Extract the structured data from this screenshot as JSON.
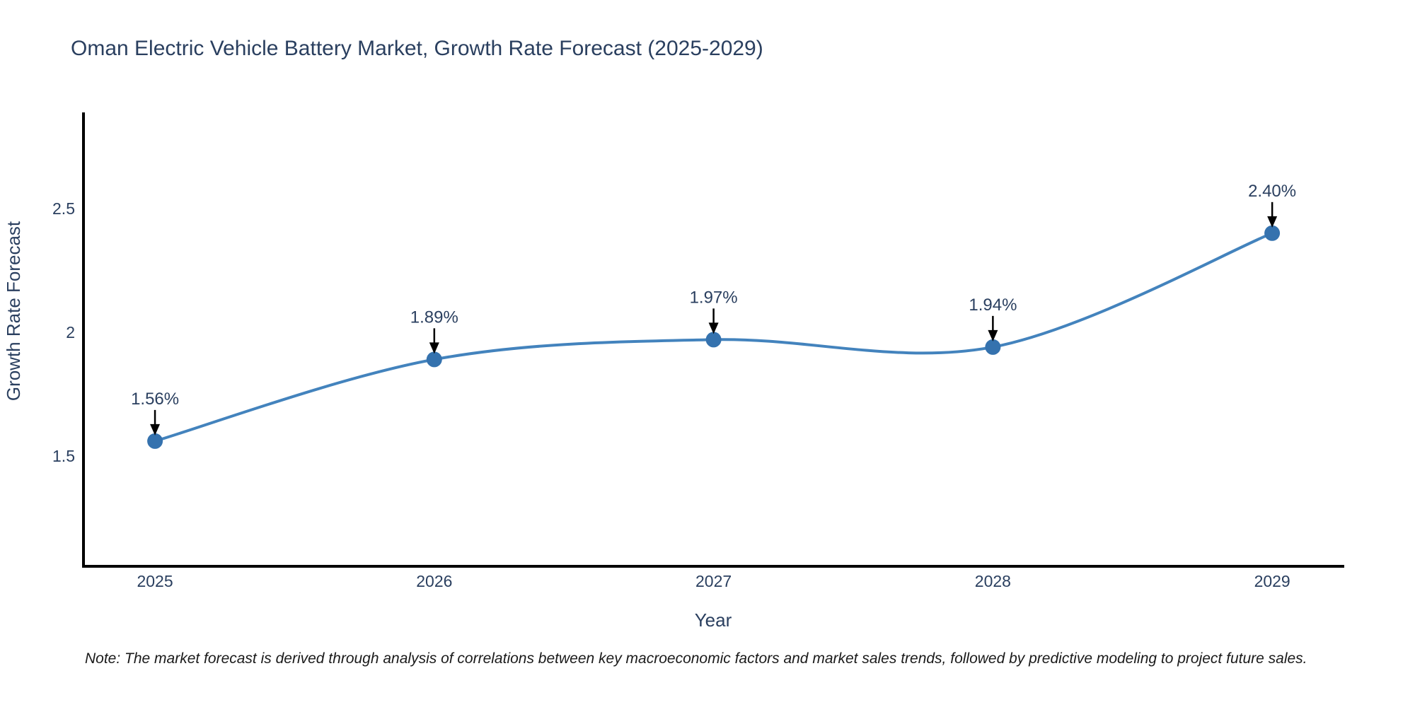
{
  "chart_data": {
    "type": "line",
    "title": "Oman Electric Vehicle Battery Market, Growth Rate Forecast (2025-2029)",
    "xlabel": "Year",
    "ylabel": "Growth Rate Forecast",
    "x": [
      2025,
      2026,
      2027,
      2028,
      2029
    ],
    "values": [
      1.56,
      1.89,
      1.97,
      1.94,
      2.4
    ],
    "point_labels": [
      "1.56%",
      "1.89%",
      "1.97%",
      "1.94%",
      "2.40%"
    ],
    "xtick_labels": [
      "2025",
      "2026",
      "2027",
      "2028",
      "2029"
    ],
    "yticks": [
      1.5,
      2,
      2.5
    ],
    "ytick_labels": [
      "1.5",
      "2",
      "2.5"
    ],
    "x_range": [
      2024.744,
      2029.258
    ],
    "y_range": [
      1.054,
      2.888
    ],
    "line_shape": "spline",
    "grid": false,
    "legend": "none",
    "note": "Note: The market forecast is derived through analysis of correlations between key macroeconomic factors and market sales trends, followed by predictive modeling to project future sales.",
    "colors": {
      "line": "#4383bd",
      "marker": "#3572ae",
      "axis": "#000000",
      "title_text": "#2a3f5f",
      "tick_text": "#2a3f5f",
      "annotation_text": "#2a3f5f",
      "arrow": "#000000",
      "note_text": "#1a1a1a",
      "background": "#ffffff"
    }
  }
}
